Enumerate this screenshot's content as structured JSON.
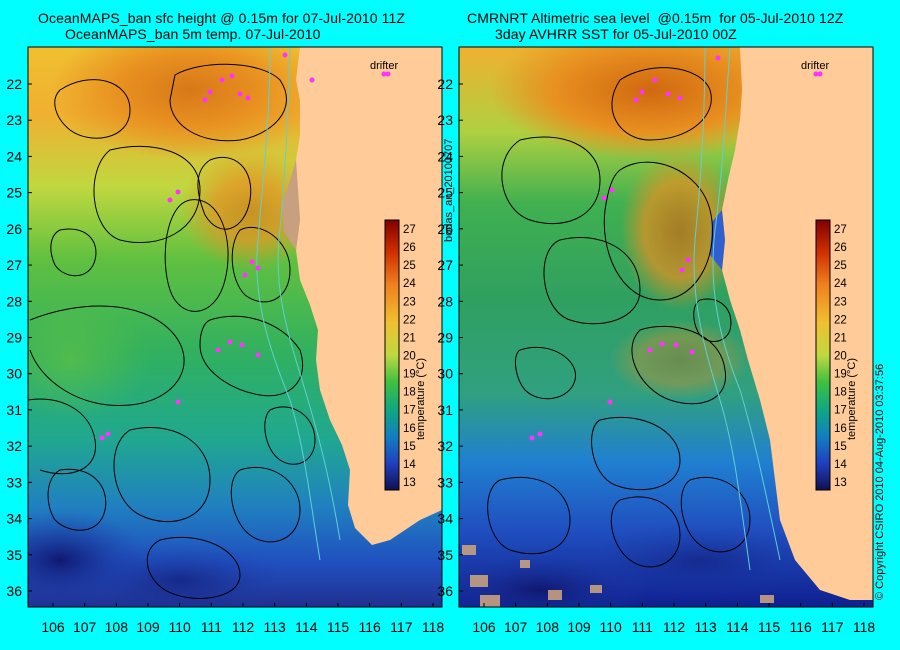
{
  "left_panel": {
    "title_line1": "OceanMAPS_ban sfc height @ 0.15m for 07-Jul-2010 11Z",
    "title_line2": "OceanMAPS_ban 5m temp. 07-Jul-2010",
    "drifter_label": "drifter"
  },
  "right_panel": {
    "title_line1": "CMRNRT Altimetric sea level  @0.15m  for 05-Jul-2010 12Z",
    "title_line2": "3day AVHRR SST for 05-Jul-2010 00Z",
    "drifter_label": "drifter"
  },
  "side_labels": {
    "bodas": "bodas_an_20100707",
    "copyright": "© Copyright CSIRO 2010   04-Aug-2010 03:37:56"
  },
  "colorbar": {
    "label": "temperature (°C)",
    "ticks": [
      "27",
      "26",
      "25",
      "24",
      "23",
      "22",
      "21",
      "20",
      "19",
      "18",
      "17",
      "16",
      "15",
      "14",
      "13"
    ],
    "colors": [
      "#a01000",
      "#d03000",
      "#e86010",
      "#f09020",
      "#f0b030",
      "#e0d040",
      "#a0d030",
      "#50c040",
      "#20b050",
      "#10a078",
      "#1080a8",
      "#2060d0",
      "#1030b0",
      "#102080",
      "#101050"
    ]
  },
  "axes": {
    "lat_ticks": [
      "22",
      "23",
      "24",
      "25",
      "26",
      "27",
      "28",
      "29",
      "30",
      "31",
      "32",
      "33",
      "34",
      "35",
      "36"
    ],
    "lon_ticks": [
      "106",
      "107",
      "108",
      "109",
      "110",
      "111",
      "112",
      "113",
      "114",
      "115",
      "116",
      "117",
      "118"
    ]
  },
  "colors": {
    "background": "#00ffff",
    "land": "#ffcc99",
    "drifter": "#ff33ff",
    "contour": "#000000",
    "bathymetry": "#5fd0d0"
  }
}
